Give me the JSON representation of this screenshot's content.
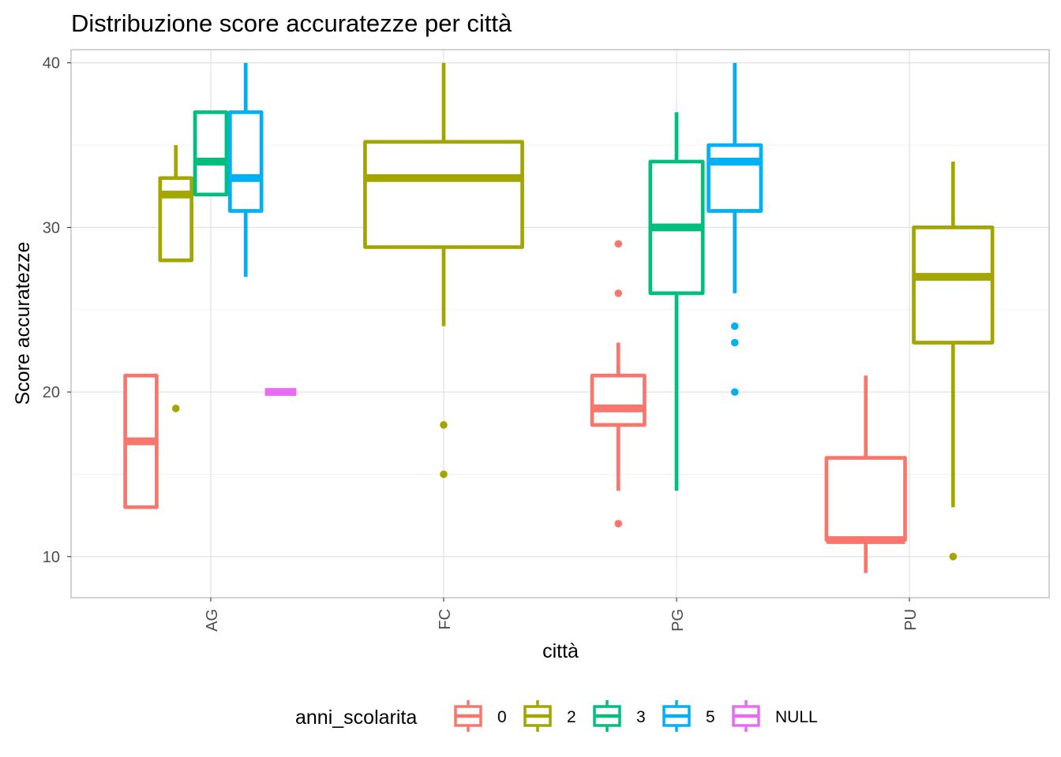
{
  "chart_data": {
    "type": "boxplot",
    "title": "Distribuzione score accuratezze per città",
    "xlabel": "città",
    "ylabel": "Score accuratezze",
    "categories": [
      "AG",
      "FC",
      "PG",
      "PU"
    ],
    "ylim": [
      7.5,
      40.8
    ],
    "yticks": [
      10,
      20,
      30,
      40
    ],
    "grid": true,
    "legend": {
      "title": "anni_scolarita",
      "position": "bottom",
      "entries": [
        {
          "label": "0",
          "color": "#F8766D"
        },
        {
          "label": "2",
          "color": "#A3A500"
        },
        {
          "label": "3",
          "color": "#00BF7D"
        },
        {
          "label": "5",
          "color": "#00B0F6"
        },
        {
          "label": "NULL",
          "color": "#E76BF3"
        }
      ]
    },
    "boxes": [
      {
        "category": "AG",
        "group": "0",
        "slot": 0,
        "nslots": 5,
        "whisker_low": 13,
        "q1": 13,
        "median": 17,
        "q3": 21,
        "whisker_high": 21,
        "outliers": []
      },
      {
        "category": "AG",
        "group": "2",
        "slot": 1,
        "nslots": 5,
        "whisker_low": 28,
        "q1": 28,
        "median": 32,
        "q3": 33,
        "whisker_high": 35,
        "outliers": [
          19
        ]
      },
      {
        "category": "AG",
        "group": "3",
        "slot": 2,
        "nslots": 5,
        "whisker_low": 32,
        "q1": 32,
        "median": 34,
        "q3": 37,
        "whisker_high": 37,
        "outliers": []
      },
      {
        "category": "AG",
        "group": "5",
        "slot": 3,
        "nslots": 5,
        "whisker_low": 27,
        "q1": 31,
        "median": 33,
        "q3": 37,
        "whisker_high": 40,
        "outliers": []
      },
      {
        "category": "AG",
        "group": "NULL",
        "slot": 4,
        "nslots": 5,
        "whisker_low": 20,
        "q1": 20,
        "median": 20,
        "q3": 20,
        "whisker_high": 20,
        "outliers": []
      },
      {
        "category": "FC",
        "group": "2",
        "slot": 0,
        "nslots": 1,
        "whisker_low": 24,
        "q1": 28.8,
        "median": 33,
        "q3": 35.2,
        "whisker_high": 40,
        "outliers": [
          18,
          15
        ]
      },
      {
        "category": "PG",
        "group": "0",
        "slot": 0,
        "nslots": 3,
        "whisker_low": 14,
        "q1": 18,
        "median": 19,
        "q3": 21,
        "whisker_high": 23,
        "outliers": [
          29,
          26,
          12
        ]
      },
      {
        "category": "PG",
        "group": "3",
        "slot": 1,
        "nslots": 3,
        "whisker_low": 14,
        "q1": 26,
        "median": 30,
        "q3": 34,
        "whisker_high": 37,
        "outliers": []
      },
      {
        "category": "PG",
        "group": "5",
        "slot": 2,
        "nslots": 3,
        "whisker_low": 26,
        "q1": 31,
        "median": 34,
        "q3": 35,
        "whisker_high": 40,
        "outliers": [
          24,
          23,
          20
        ]
      },
      {
        "category": "PU",
        "group": "0",
        "slot": 0,
        "nslots": 2,
        "whisker_low": 9,
        "q1": 11,
        "median": 11,
        "q3": 16,
        "whisker_high": 21,
        "outliers": []
      },
      {
        "category": "PU",
        "group": "2",
        "slot": 1,
        "nslots": 2,
        "whisker_low": 13,
        "q1": 23,
        "median": 27,
        "q3": 30,
        "whisker_high": 34,
        "outliers": [
          10
        ]
      }
    ]
  }
}
